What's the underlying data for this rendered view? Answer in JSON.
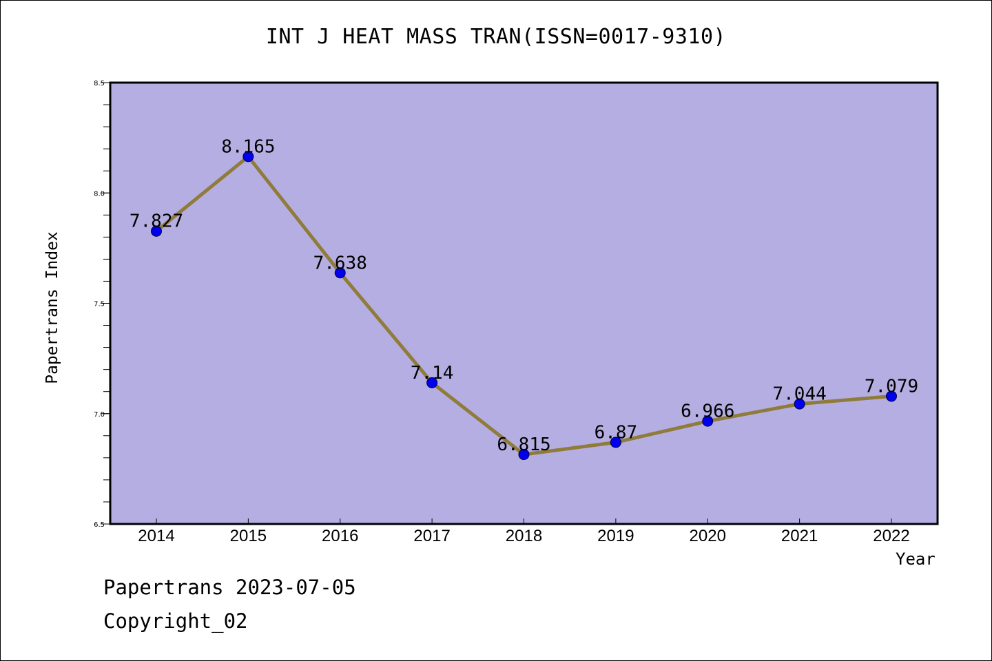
{
  "chart_data": {
    "type": "line",
    "title": "INT J HEAT MASS TRAN(ISSN=0017-9310)",
    "xlabel": "Year",
    "ylabel": "Papertrans Index",
    "categories": [
      "2014",
      "2015",
      "2016",
      "2017",
      "2018",
      "2019",
      "2020",
      "2021",
      "2022"
    ],
    "values": [
      7.827,
      8.165,
      7.638,
      7.14,
      6.815,
      6.87,
      6.966,
      7.044,
      7.079
    ],
    "data_labels": [
      "7.827",
      "8.165",
      "7.638",
      "7.14",
      "6.815",
      "6.87",
      "6.966",
      "7.044",
      "7.079"
    ],
    "ylim": [
      6.5,
      8.5
    ],
    "yticks": [
      "6.5",
      "7.0",
      "7.5",
      "8.0",
      "8.5"
    ],
    "grid": false,
    "colors": {
      "plot_background": "#b5aee2",
      "line": "#8f7b3a",
      "marker": "#0000ee"
    }
  },
  "footer": {
    "line1": "Papertrans 2023-07-05",
    "line2": "Copyright_02"
  }
}
